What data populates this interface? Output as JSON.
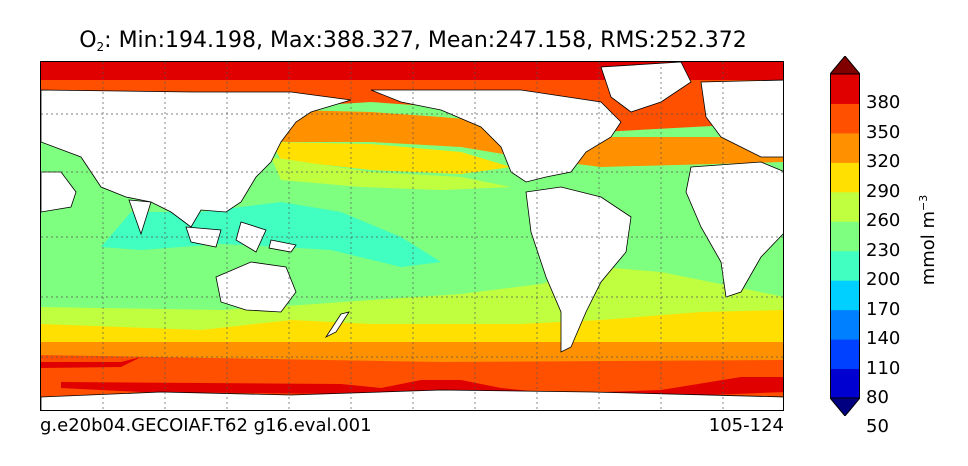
{
  "title": {
    "species": "O",
    "subscript": "2",
    "stats": ": Min:194.198, Max:388.327, Mean:247.158, RMS:252.372"
  },
  "footer": {
    "left": "g.e20b04.GECOIAF.T62 g16.eval.001",
    "right": "105-124"
  },
  "colorbar": {
    "unit_base": "mmol m",
    "unit_exp": "−3",
    "ticks": [
      "380",
      "350",
      "320",
      "290",
      "260",
      "230",
      "200",
      "170",
      "140",
      "110",
      "80",
      "50"
    ],
    "colors": [
      "#000080",
      "#0000d0",
      "#0040ff",
      "#0080ff",
      "#00d0ff",
      "#40ffc0",
      "#7fff7f",
      "#c0ff40",
      "#ffe000",
      "#ff9000",
      "#ff5000",
      "#e00000",
      "#800000"
    ],
    "extend": "both"
  },
  "map": {
    "land_color": "#ffffff",
    "zone_colors": {
      "low": "#40ffc0",
      "mid": "#7fff7f",
      "mid_high": "#c0ff40",
      "high": "#ffe000",
      "higher": "#ff9000",
      "very_high": "#ff5000",
      "max": "#e00000"
    },
    "grid": "dotted"
  }
}
